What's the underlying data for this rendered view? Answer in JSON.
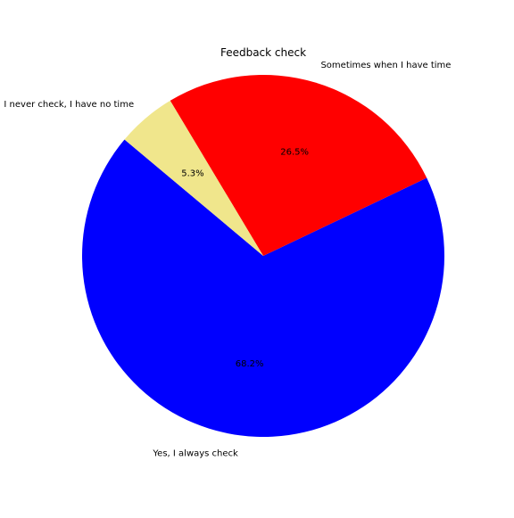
{
  "chart_data": {
    "type": "pie",
    "title": "Feedback check",
    "categories": [
      "Yes, I always check",
      "Sometimes when I have time",
      "I never check, I have no time"
    ],
    "values": [
      68.2,
      26.5,
      5.3
    ],
    "value_labels": [
      "68.2%",
      "26.5%",
      "5.3%"
    ],
    "colors": [
      "#0000ff",
      "#ff0000",
      "#f0e68c"
    ],
    "start_angle_deg": 140,
    "direction": "counterclockwise",
    "legend": "none"
  }
}
